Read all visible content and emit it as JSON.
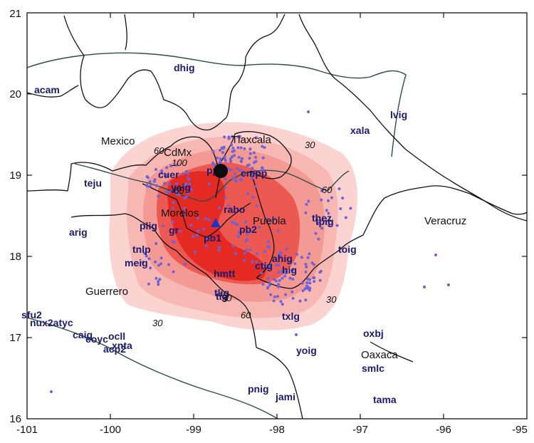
{
  "map": {
    "x_ticks": [
      "-101",
      "-100",
      "-99",
      "-98",
      "-97",
      "-96",
      "-95"
    ],
    "y_ticks": [
      "21",
      "20",
      "19",
      "18",
      "17",
      "16"
    ],
    "regions": [
      {
        "key": "mexico",
        "label": "Mexico"
      },
      {
        "key": "cdmx",
        "label": "CdMx"
      },
      {
        "key": "tlaxcala",
        "label": "Tlaxcala"
      },
      {
        "key": "morelos",
        "label": "Morelos"
      },
      {
        "key": "puebla",
        "label": "Puebla"
      },
      {
        "key": "veracruz",
        "label": "Veracruz"
      },
      {
        "key": "guerrero",
        "label": "Guerrero"
      },
      {
        "key": "oaxaca",
        "label": "Oaxaca"
      }
    ],
    "contour_labels": [
      "100",
      "60",
      "30",
      "60",
      "60",
      "30",
      "60",
      "30",
      "30"
    ],
    "stations": [
      "acam",
      "dhig",
      "lvig",
      "xala",
      "teju",
      "cuer",
      "yaig",
      "rabo",
      "arig",
      "plig",
      "gr",
      "pb1",
      "pb2",
      "thez",
      "tpig",
      "toig",
      "tnlp",
      "meig",
      "ahig",
      "hig",
      "ctig",
      "hmtt",
      "tlig",
      "tig",
      "txlg",
      "sfu2",
      "nux2atyc",
      "caig",
      "coyc",
      "ocll",
      "acp2",
      "xnta",
      "oxbj",
      "yoig",
      "smlc",
      "pnig",
      "jami",
      "tama",
      "ppig",
      "cmpp"
    ],
    "colors": {
      "intensity_light": "#fbd4d2",
      "intensity_mid": "#f49a95",
      "intensity_strong": "#ec5852",
      "intensity_max": "#e52a24",
      "boundary": "#111111",
      "coast": "#2d4d44",
      "event_marker": "#0c0c0c",
      "station_marker": "#1c33c9",
      "dots": "#6f62d6",
      "station_text": "#1a1a6e"
    },
    "event_marker_icon": "black-circle",
    "station_marker_icon": "blue-triangle"
  }
}
